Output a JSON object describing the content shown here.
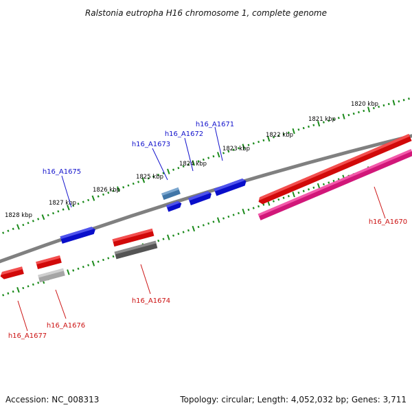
{
  "title": "Ralstonia eutropha H16 chromosome 1, complete genome",
  "footer": {
    "accession": "Accession: NC_008313",
    "summary": "Topology: circular; Length: 4,052,032 bp; Genes: 3,711"
  },
  "colors": {
    "backbone": "#808080",
    "tick": "#1a8a1a",
    "fwd_label": "#1111cc",
    "rev_label": "#cc1111",
    "blue": "#0a10e6",
    "steel": "#4a86be",
    "red": "#ee0a0a",
    "pink": "#ee1a8a",
    "darkgray": "#606060",
    "lightgray": "#bcbcbc"
  },
  "scale_labels": [
    "1820 kbp",
    "1821 kbp",
    "1822 kbp",
    "1823 kbp",
    "1824 kbp",
    "1825 kbp",
    "1826 kbp",
    "1827 kbp",
    "1828 kbp"
  ],
  "genes": [
    {
      "name": "h16_A1670",
      "strand": "reverse"
    },
    {
      "name": "h16_A1671",
      "strand": "forward"
    },
    {
      "name": "h16_A1672",
      "strand": "forward"
    },
    {
      "name": "h16_A1673",
      "strand": "forward"
    },
    {
      "name": "h16_A1674",
      "strand": "reverse"
    },
    {
      "name": "h16_A1675",
      "strand": "forward"
    },
    {
      "name": "h16_A1676",
      "strand": "reverse"
    },
    {
      "name": "h16_A1677",
      "strand": "reverse"
    }
  ]
}
